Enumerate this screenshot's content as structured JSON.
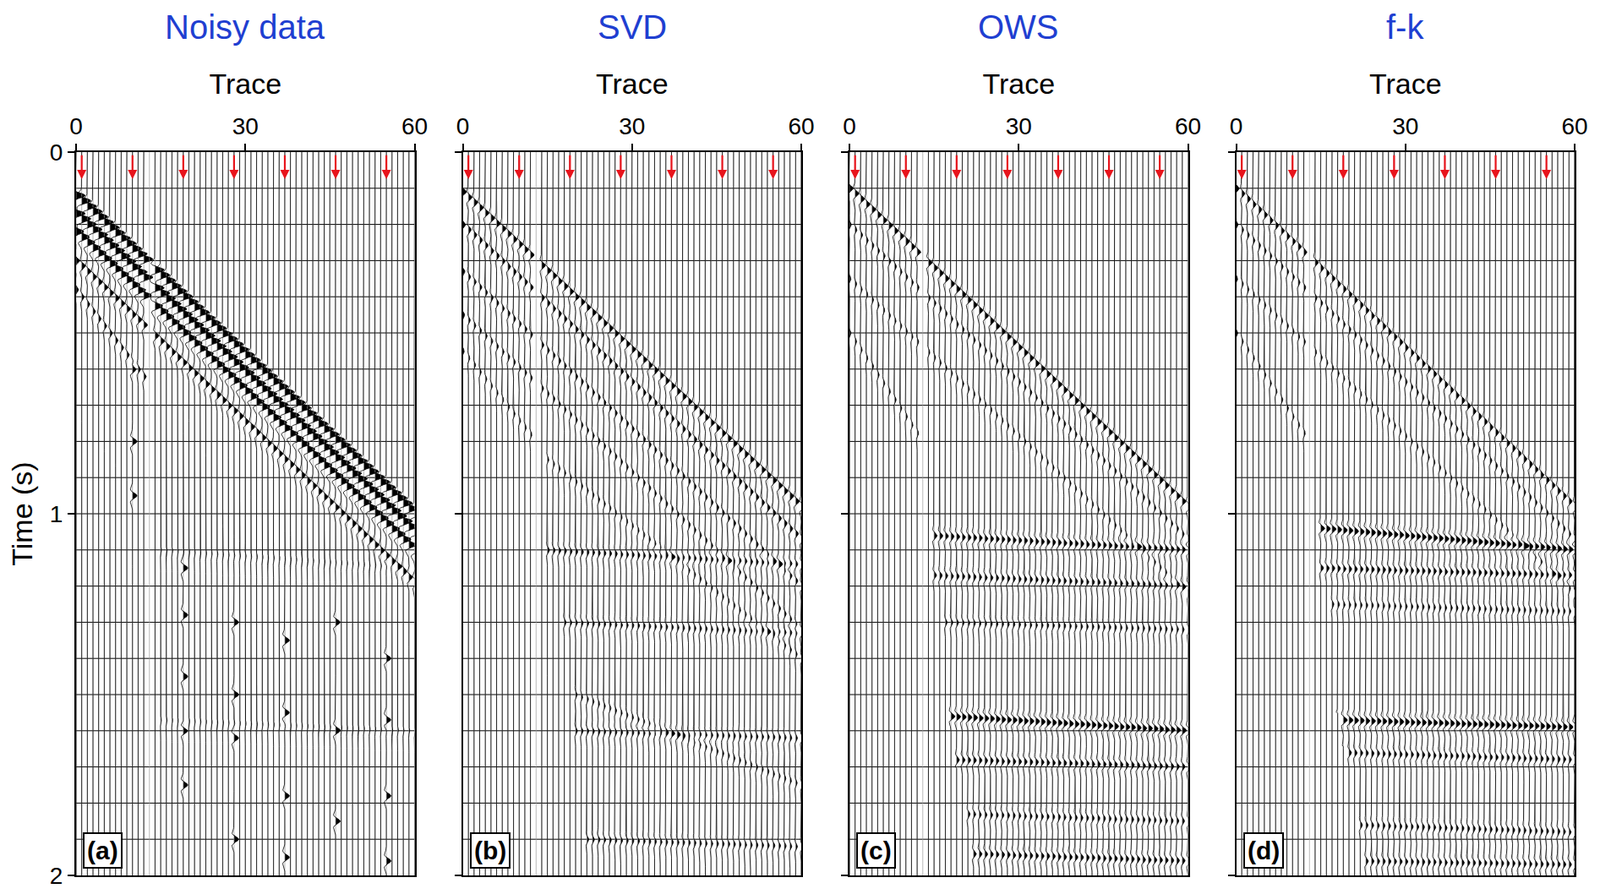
{
  "chart_data": [
    {
      "type": "wiggle",
      "title": "Noisy data",
      "xlabel": "Trace",
      "ylabel": "Time (s)",
      "panel_label": "(a)",
      "xlim": [
        0,
        60
      ],
      "ylim": [
        2,
        0
      ],
      "xticks": [
        0,
        30,
        60
      ],
      "yticks": [
        0,
        1,
        2
      ],
      "tick_labels": true,
      "grid": true,
      "color": "#000000",
      "trace_positions": [
        0,
        1,
        2,
        3,
        4,
        5,
        6,
        7,
        8,
        9,
        10,
        11,
        12,
        13,
        14,
        15,
        16,
        17,
        18,
        19,
        20,
        21,
        22,
        23,
        24,
        25,
        26,
        27,
        28,
        29,
        30,
        31,
        32,
        33,
        34,
        35,
        36,
        37,
        38,
        39,
        40,
        41,
        42,
        43,
        44,
        45,
        46,
        47,
        48,
        49,
        50,
        51,
        52,
        53,
        54,
        55,
        56,
        57,
        58,
        59,
        60
      ],
      "y_gridlines": [
        0.1,
        0.2,
        0.3,
        0.4,
        0.5,
        0.6,
        0.7,
        0.8,
        0.9,
        1.0,
        1.1,
        1.2,
        1.3,
        1.4,
        1.5,
        1.6,
        1.7,
        1.8,
        1.9
      ],
      "arrows": [
        1,
        10,
        19,
        28,
        37,
        46,
        55
      ],
      "dead_traces": [
        13
      ],
      "top_mute": {
        "x": [
          0,
          60
        ],
        "t": [
          0.1,
          0.95
        ]
      },
      "bottom_mute": {
        "x": [
          0,
          12,
          13,
          60
        ],
        "t": [
          1.0,
          1.0,
          2.0,
          2.0
        ]
      },
      "events": [
        {
          "x": [
            0,
            60
          ],
          "t": [
            0.12,
            1.0
          ],
          "amp": 3
        },
        {
          "x": [
            0,
            60
          ],
          "t": [
            0.17,
            1.05
          ],
          "amp": 3
        },
        {
          "x": [
            0,
            60
          ],
          "t": [
            0.22,
            1.1
          ],
          "amp": 2.5
        },
        {
          "x": [
            0,
            60
          ],
          "t": [
            0.3,
            1.19
          ],
          "amp": 1.2
        },
        {
          "x": [
            0,
            12
          ],
          "t": [
            0.38,
            0.62
          ],
          "amp": 0.8
        },
        {
          "x": [
            15,
            60
          ],
          "t": [
            1.1,
            1.15
          ],
          "amp": 0.25
        },
        {
          "x": [
            15,
            60
          ],
          "t": [
            1.57,
            1.6
          ],
          "amp": 0.25
        }
      ],
      "spikes": [
        {
          "trace": 10,
          "t": [
            0.6,
            0.8,
            0.95
          ],
          "amp": 1.5
        },
        {
          "trace": 19,
          "t": [
            1.15,
            1.28,
            1.45,
            1.6,
            1.75
          ],
          "amp": 1.5
        },
        {
          "trace": 28,
          "t": [
            1.3,
            1.5,
            1.62,
            1.9
          ],
          "amp": 1.5
        },
        {
          "trace": 37,
          "t": [
            1.35,
            1.55,
            1.78,
            1.95
          ],
          "amp": 1.5
        },
        {
          "trace": 46,
          "t": [
            1.3,
            1.6,
            1.85
          ],
          "amp": 1.5
        },
        {
          "trace": 55,
          "t": [
            1.4,
            1.57,
            1.78,
            1.96
          ],
          "amp": 1.5
        }
      ]
    },
    {
      "type": "wiggle",
      "title": "SVD",
      "xlabel": "Trace",
      "panel_label": "(b)",
      "xlim": [
        0,
        60
      ],
      "ylim": [
        2,
        0
      ],
      "xticks": [
        0,
        30,
        60
      ],
      "yticks": [
        0,
        1,
        2
      ],
      "tick_labels": "x",
      "grid": true,
      "color": "#000000",
      "trace_positions": [
        0,
        1,
        2,
        3,
        4,
        5,
        6,
        7,
        8,
        9,
        10,
        11,
        12,
        13,
        14,
        15,
        16,
        17,
        18,
        19,
        20,
        21,
        22,
        23,
        24,
        25,
        26,
        27,
        28,
        29,
        30,
        31,
        32,
        33,
        34,
        35,
        36,
        37,
        38,
        39,
        40,
        41,
        42,
        43,
        44,
        45,
        46,
        47,
        48,
        49,
        50,
        51,
        52,
        53,
        54,
        55,
        56,
        57,
        58,
        59,
        60
      ],
      "y_gridlines": [
        0.1,
        0.2,
        0.3,
        0.4,
        0.5,
        0.6,
        0.7,
        0.8,
        0.9,
        1.0,
        1.1,
        1.2,
        1.3,
        1.4,
        1.5,
        1.6,
        1.7,
        1.8,
        1.9
      ],
      "arrows": [
        1,
        10,
        19,
        28,
        37,
        46,
        55
      ],
      "dead_traces": [
        13
      ],
      "top_mute": {
        "x": [
          0,
          60
        ],
        "t": [
          0.1,
          0.98
        ]
      },
      "bottom_mute": {
        "x": [
          0,
          12,
          13,
          20,
          60
        ],
        "t": [
          1.02,
          1.02,
          1.1,
          2.0,
          2.0
        ]
      },
      "events": [
        {
          "x": [
            0,
            60
          ],
          "t": [
            0.11,
            0.98
          ],
          "amp": 1.2
        },
        {
          "x": [
            0,
            60
          ],
          "t": [
            0.2,
            1.07
          ],
          "amp": 0.9
        },
        {
          "x": [
            0,
            60
          ],
          "t": [
            0.33,
            1.2
          ],
          "amp": 0.7
        },
        {
          "x": [
            0,
            60
          ],
          "t": [
            0.45,
            1.32
          ],
          "amp": 0.6
        },
        {
          "x": [
            0,
            13
          ],
          "t": [
            0.55,
            0.8
          ],
          "amp": 0.5
        },
        {
          "x": [
            15,
            60
          ],
          "t": [
            0.85,
            1.4
          ],
          "amp": 0.5
        },
        {
          "x": [
            15,
            60
          ],
          "t": [
            1.1,
            1.14
          ],
          "amp": 0.7
        },
        {
          "x": [
            18,
            60
          ],
          "t": [
            1.3,
            1.33
          ],
          "amp": 0.6
        },
        {
          "x": [
            20,
            60
          ],
          "t": [
            1.5,
            1.75
          ],
          "amp": 0.5
        },
        {
          "x": [
            20,
            60
          ],
          "t": [
            1.6,
            1.62
          ],
          "amp": 0.6
        },
        {
          "x": [
            22,
            60
          ],
          "t": [
            1.9,
            1.92
          ],
          "amp": 0.6
        }
      ]
    },
    {
      "type": "wiggle",
      "title": "OWS",
      "xlabel": "Trace",
      "panel_label": "(c)",
      "xlim": [
        0,
        60
      ],
      "ylim": [
        2,
        0
      ],
      "xticks": [
        0,
        30,
        60
      ],
      "yticks": [
        0,
        1,
        2
      ],
      "tick_labels": "x",
      "grid": true,
      "color": "#000000",
      "trace_positions": [
        0,
        1,
        2,
        3,
        4,
        5,
        6,
        7,
        8,
        9,
        10,
        11,
        12,
        13,
        14,
        15,
        16,
        17,
        18,
        19,
        20,
        21,
        22,
        23,
        24,
        25,
        26,
        27,
        28,
        29,
        30,
        31,
        32,
        33,
        34,
        35,
        36,
        37,
        38,
        39,
        40,
        41,
        42,
        43,
        44,
        45,
        46,
        47,
        48,
        49,
        50,
        51,
        52,
        53,
        54,
        55,
        56,
        57,
        58,
        59,
        60
      ],
      "y_gridlines": [
        0.1,
        0.2,
        0.3,
        0.4,
        0.5,
        0.6,
        0.7,
        0.8,
        0.9,
        1.0,
        1.1,
        1.2,
        1.3,
        1.4,
        1.5,
        1.6,
        1.7,
        1.8,
        1.9
      ],
      "arrows": [
        1,
        10,
        19,
        28,
        37,
        46,
        55
      ],
      "dead_traces": [
        13
      ],
      "top_mute": {
        "x": [
          0,
          60
        ],
        "t": [
          0.1,
          0.98
        ]
      },
      "bottom_mute": {
        "x": [
          0,
          12,
          13,
          22,
          60
        ],
        "t": [
          1.05,
          1.05,
          1.1,
          2.0,
          2.0
        ]
      },
      "events": [
        {
          "x": [
            0,
            60
          ],
          "t": [
            0.1,
            0.98
          ],
          "amp": 1.2
        },
        {
          "x": [
            0,
            60
          ],
          "t": [
            0.2,
            1.07
          ],
          "amp": 0.6
        },
        {
          "x": [
            0,
            60
          ],
          "t": [
            0.35,
            1.22
          ],
          "amp": 0.5
        },
        {
          "x": [
            0,
            13
          ],
          "t": [
            0.5,
            0.8
          ],
          "amp": 0.5
        },
        {
          "x": [
            15,
            60
          ],
          "t": [
            1.06,
            1.1
          ],
          "amp": 1.0
        },
        {
          "x": [
            15,
            60
          ],
          "t": [
            1.17,
            1.2
          ],
          "amp": 0.8
        },
        {
          "x": [
            17,
            60
          ],
          "t": [
            1.3,
            1.32
          ],
          "amp": 0.6
        },
        {
          "x": [
            18,
            60
          ],
          "t": [
            1.56,
            1.6
          ],
          "amp": 1.3
        },
        {
          "x": [
            19,
            60
          ],
          "t": [
            1.68,
            1.7
          ],
          "amp": 0.9
        },
        {
          "x": [
            20,
            60
          ],
          "t": [
            1.83,
            1.85
          ],
          "amp": 0.7
        },
        {
          "x": [
            22,
            60
          ],
          "t": [
            1.94,
            1.96
          ],
          "amp": 0.9
        }
      ]
    },
    {
      "type": "wiggle",
      "title": "f-k",
      "xlabel": "Trace",
      "panel_label": "(d)",
      "xlim": [
        0,
        60
      ],
      "ylim": [
        2,
        0
      ],
      "xticks": [
        0,
        30,
        60
      ],
      "yticks": [
        0,
        1,
        2
      ],
      "tick_labels": "x",
      "grid": true,
      "color": "#000000",
      "trace_positions": [
        0,
        1,
        2,
        3,
        4,
        5,
        6,
        7,
        8,
        9,
        10,
        11,
        12,
        13,
        14,
        15,
        16,
        17,
        18,
        19,
        20,
        21,
        22,
        23,
        24,
        25,
        26,
        27,
        28,
        29,
        30,
        31,
        32,
        33,
        34,
        35,
        36,
        37,
        38,
        39,
        40,
        41,
        42,
        43,
        44,
        45,
        46,
        47,
        48,
        49,
        50,
        51,
        52,
        53,
        54,
        55,
        56,
        57,
        58,
        59,
        60
      ],
      "y_gridlines": [
        0.1,
        0.2,
        0.3,
        0.4,
        0.5,
        0.6,
        0.7,
        0.8,
        0.9,
        1.0,
        1.1,
        1.2,
        1.3,
        1.4,
        1.5,
        1.6,
        1.7,
        1.8,
        1.9
      ],
      "arrows": [
        1,
        10,
        19,
        28,
        37,
        46,
        55
      ],
      "dead_traces": [
        13
      ],
      "top_mute": {
        "x": [
          0,
          60
        ],
        "t": [
          0.1,
          0.98
        ]
      },
      "bottom_mute": {
        "x": [
          0,
          12,
          13,
          23,
          60
        ],
        "t": [
          1.05,
          1.05,
          1.1,
          2.0,
          2.0
        ]
      },
      "events": [
        {
          "x": [
            0,
            60
          ],
          "t": [
            0.1,
            0.98
          ],
          "amp": 1.0
        },
        {
          "x": [
            0,
            60
          ],
          "t": [
            0.2,
            1.07
          ],
          "amp": 0.6
        },
        {
          "x": [
            0,
            60
          ],
          "t": [
            0.35,
            1.22
          ],
          "amp": 0.5
        },
        {
          "x": [
            0,
            13
          ],
          "t": [
            0.5,
            0.8
          ],
          "amp": 0.5
        },
        {
          "x": [
            15,
            60
          ],
          "t": [
            1.04,
            1.1
          ],
          "amp": 1.3
        },
        {
          "x": [
            15,
            60
          ],
          "t": [
            1.15,
            1.17
          ],
          "amp": 0.9
        },
        {
          "x": [
            17,
            60
          ],
          "t": [
            1.25,
            1.27
          ],
          "amp": 0.6
        },
        {
          "x": [
            18,
            60
          ],
          "t": [
            1.57,
            1.59
          ],
          "amp": 1.3
        },
        {
          "x": [
            19,
            60
          ],
          "t": [
            1.66,
            1.68
          ],
          "amp": 0.8
        },
        {
          "x": [
            21,
            60
          ],
          "t": [
            1.86,
            1.88
          ],
          "amp": 0.7
        },
        {
          "x": [
            23,
            60
          ],
          "t": [
            1.96,
            1.97
          ],
          "amp": 0.8
        }
      ]
    }
  ]
}
